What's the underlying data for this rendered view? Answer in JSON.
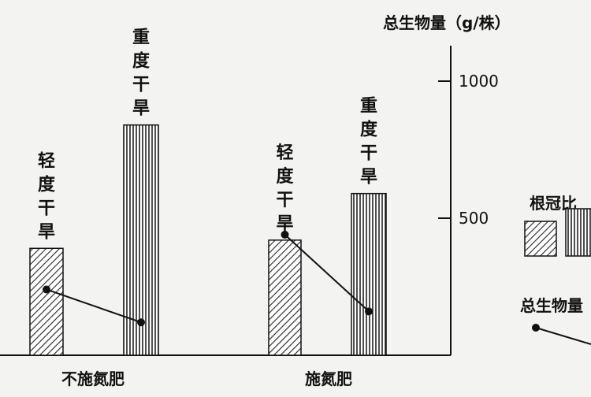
{
  "chart_data": {
    "type": "bar",
    "groups": [
      "不施氮肥",
      "施氮肥"
    ],
    "bar_labels": [
      [
        "轻度干旱",
        "重度干旱"
      ],
      [
        "轻度干旱",
        "重度干旱"
      ]
    ],
    "bar_values": [
      [
        390,
        840
      ],
      [
        420,
        590
      ]
    ],
    "line_values": [
      [
        240,
        120
      ],
      [
        440,
        160
      ]
    ],
    "right_axis": {
      "label": "总生物量（g/株）",
      "ticks": [
        500,
        1000
      ]
    },
    "legend": {
      "bar_label": "根冠比",
      "line_label": "总生物量",
      "colors": {
        "light": "#555555",
        "heavy": "#333333"
      }
    }
  }
}
